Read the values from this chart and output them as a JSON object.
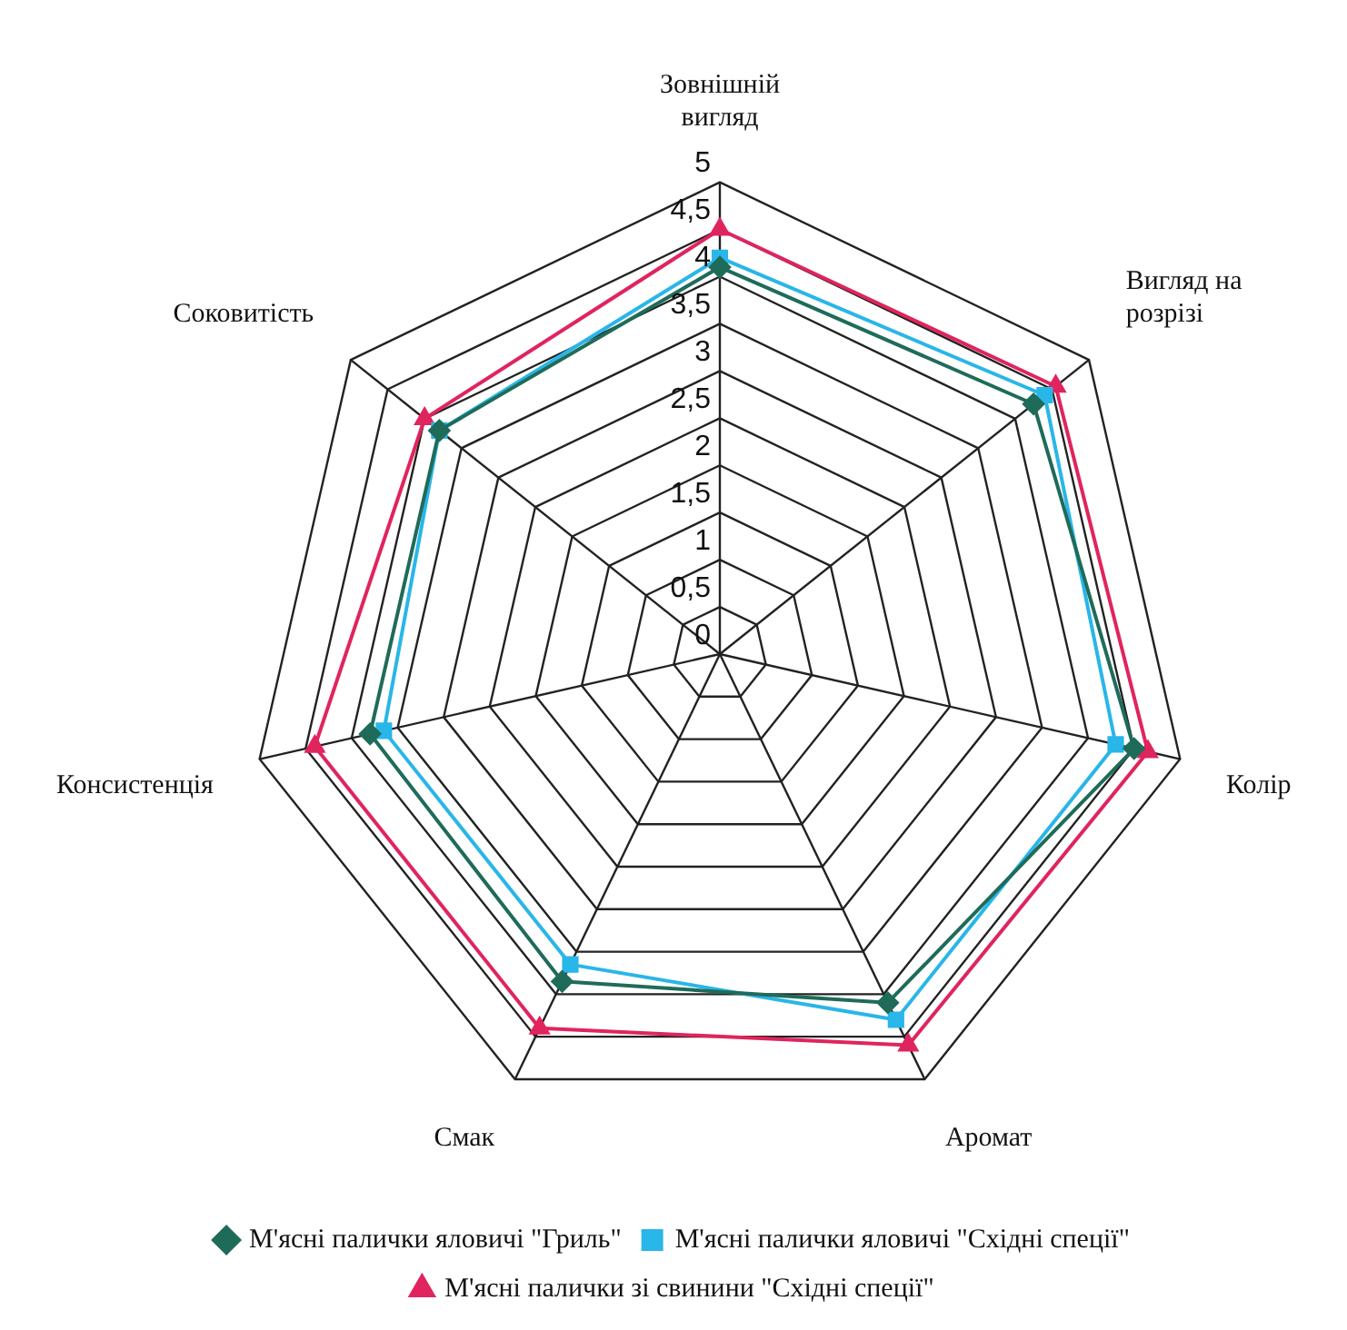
{
  "chart_data": {
    "type": "radar",
    "categories": [
      "Зовнішній\nвигляд",
      "Вигляд на\nрозрізі",
      "Колір",
      "Аромат",
      "Смак",
      "Консистенція",
      "Соковитість"
    ],
    "series": [
      {
        "name": "М'ясні палички яловичі \"Гриль\"",
        "color": "#1f6b5a",
        "marker": "diamond",
        "values": [
          4.1,
          4.25,
          4.5,
          4.1,
          3.85,
          3.8,
          3.8
        ]
      },
      {
        "name": "М'ясні палички яловичі \"Східні спеції\"",
        "color": "#29b6e8",
        "marker": "square",
        "values": [
          4.2,
          4.4,
          4.3,
          4.3,
          3.65,
          3.65,
          3.8
        ]
      },
      {
        "name": "М'ясні палички зі свинини \"Східні спеції\"",
        "color": "#e0245e",
        "marker": "triangle",
        "values": [
          4.5,
          4.55,
          4.65,
          4.6,
          4.4,
          4.4,
          4.0
        ]
      }
    ],
    "ylim": [
      0,
      5
    ],
    "yticks": [
      0,
      {
        "value": 0.5,
        "label": "0,5"
      },
      1,
      {
        "value": 1.5,
        "label": "1,5"
      },
      2,
      {
        "value": 2.5,
        "label": "2,5"
      },
      3,
      {
        "value": 3.5,
        "label": "3,5"
      },
      4,
      {
        "value": 4.5,
        "label": "4,5"
      },
      5
    ],
    "grid": true,
    "legend": "bottom"
  }
}
